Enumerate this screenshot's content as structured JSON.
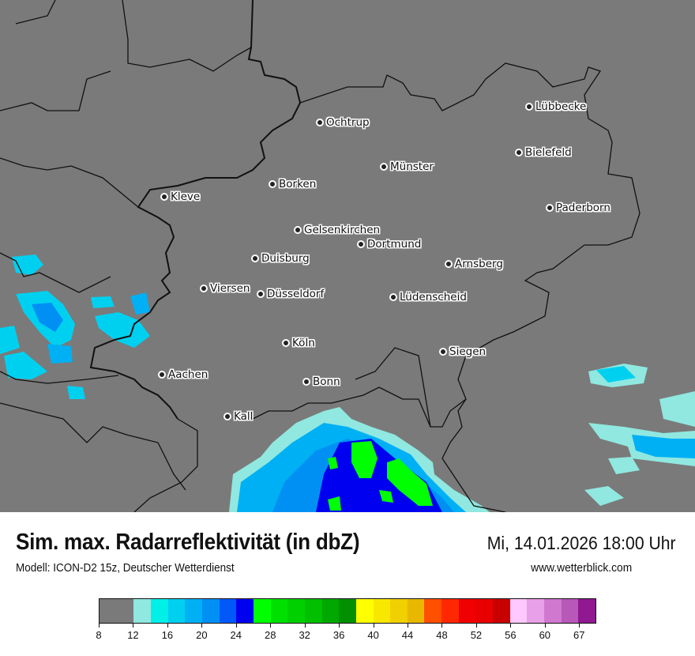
{
  "header": {
    "title": "Sim. max. Radarreflektivität (in dbZ)",
    "datetime": "Mi, 14.01.2026 18:00 Uhr",
    "model": "Modell: ICON-D2 15z, Deutscher Wetterdienst",
    "website": "www.wetterblick.com"
  },
  "map": {
    "background_color": "#7a7a7a",
    "cities": [
      {
        "name": "Lübbecke"
      },
      {
        "name": "Ochtrup"
      },
      {
        "name": "Bielefeld"
      },
      {
        "name": "Münster"
      },
      {
        "name": "Borken"
      },
      {
        "name": "Kleve"
      },
      {
        "name": "Paderborn"
      },
      {
        "name": "Gelsenkirchen"
      },
      {
        "name": "Dortmund"
      },
      {
        "name": "Duisburg"
      },
      {
        "name": "Arnsberg"
      },
      {
        "name": "Viersen"
      },
      {
        "name": "Düsseldorf"
      },
      {
        "name": "Lüdenscheid"
      },
      {
        "name": "Köln"
      },
      {
        "name": "Siegen"
      },
      {
        "name": "Aachen"
      },
      {
        "name": "Bonn"
      },
      {
        "name": "Kall"
      }
    ]
  },
  "legend": {
    "unit": "dbZ",
    "bins": [
      {
        "from": 8,
        "to": 12,
        "color": "#7a7a7a"
      },
      {
        "from": 12,
        "to": 14,
        "color": "#90e8e0"
      },
      {
        "from": 14,
        "to": 16,
        "color": "#00f0e8"
      },
      {
        "from": 16,
        "to": 18,
        "color": "#00d0f0"
      },
      {
        "from": 18,
        "to": 20,
        "color": "#00b0f4"
      },
      {
        "from": 20,
        "to": 22,
        "color": "#0090f4"
      },
      {
        "from": 22,
        "to": 24,
        "color": "#0058f8"
      },
      {
        "from": 24,
        "to": 26,
        "color": "#0000f0"
      },
      {
        "from": 26,
        "to": 28,
        "color": "#00ff00"
      },
      {
        "from": 28,
        "to": 30,
        "color": "#00e000"
      },
      {
        "from": 30,
        "to": 32,
        "color": "#00d000"
      },
      {
        "from": 32,
        "to": 34,
        "color": "#00c000"
      },
      {
        "from": 34,
        "to": 36,
        "color": "#00a800"
      },
      {
        "from": 36,
        "to": 38,
        "color": "#009000"
      },
      {
        "from": 38,
        "to": 40,
        "color": "#ffff00"
      },
      {
        "from": 40,
        "to": 42,
        "color": "#f8e800"
      },
      {
        "from": 42,
        "to": 44,
        "color": "#f0d000"
      },
      {
        "from": 44,
        "to": 46,
        "color": "#e8b800"
      },
      {
        "from": 46,
        "to": 48,
        "color": "#ff5000"
      },
      {
        "from": 48,
        "to": 50,
        "color": "#ff2800"
      },
      {
        "from": 50,
        "to": 52,
        "color": "#f00000"
      },
      {
        "from": 52,
        "to": 54,
        "color": "#e80000"
      },
      {
        "from": 54,
        "to": 56,
        "color": "#c80000"
      },
      {
        "from": 56,
        "to": 58,
        "color": "#ffc8ff"
      },
      {
        "from": 58,
        "to": 60,
        "color": "#e8a0e8"
      },
      {
        "from": 60,
        "to": 63,
        "color": "#d078d0"
      },
      {
        "from": 63,
        "to": 67,
        "color": "#b858b8"
      },
      {
        "from": 67,
        "to": 70,
        "color": "#901890"
      }
    ],
    "tick_labels": [
      "8",
      "12",
      "16",
      "20",
      "24",
      "28",
      "32",
      "36",
      "40",
      "44",
      "48",
      "52",
      "56",
      "60",
      "67"
    ]
  }
}
